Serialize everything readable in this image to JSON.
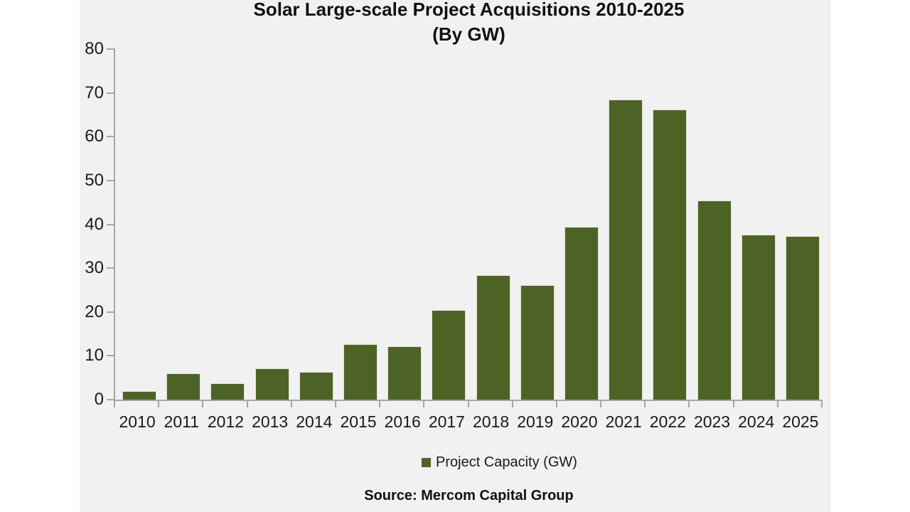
{
  "page": {
    "background": "#ffffff",
    "panel_background": "#f1f1f2",
    "axis_color": "#a6a6a6",
    "text_color": "#1a1a1a"
  },
  "chart_data": {
    "type": "bar",
    "title": "Solar Large-scale Project Acquisitions 2010-2025",
    "subtitle": "(By GW)",
    "categories": [
      "2010",
      "2011",
      "2012",
      "2013",
      "2014",
      "2015",
      "2016",
      "2017",
      "2018",
      "2019",
      "2020",
      "2021",
      "2022",
      "2023",
      "2024",
      "2025"
    ],
    "series": [
      {
        "name": "Project Capacity (GW)",
        "color": "#4d6326",
        "values": [
          2,
          6,
          3.8,
          7.1,
          6.3,
          12.6,
          12.2,
          20.4,
          28.4,
          26.1,
          39.5,
          68.5,
          66.2,
          45.4,
          37.7,
          37.3
        ]
      }
    ],
    "xlabel": "",
    "ylabel": "",
    "ylim": [
      0,
      80
    ],
    "ytick_interval": 10,
    "grid": false,
    "legend": {
      "position": "bottom",
      "items": [
        {
          "label": "Project Capacity (GW)",
          "marker": "square",
          "color": "#4d6326"
        }
      ]
    },
    "source": "Source: Mercom Capital Group"
  }
}
